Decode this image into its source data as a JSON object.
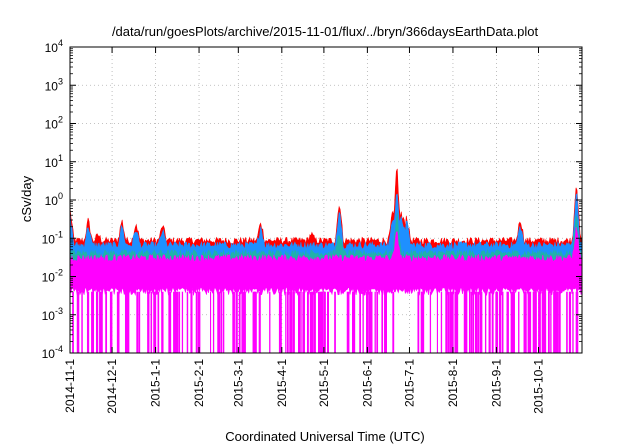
{
  "chart_data": {
    "type": "area",
    "title": "/data/run/goesPlots/archive/2015-11-01/flux/../bryn/366daysEarthData.plot",
    "xlabel": "Coordinated Universal Time (UTC)",
    "ylabel": "cSv/day",
    "y_scale": "log",
    "ylim": [
      0.0001,
      10000
    ],
    "xlim": [
      "2014-11-01",
      "2015-11-01"
    ],
    "y_ticks": [
      {
        "value": 0.0001,
        "base": "10",
        "exp": "-4"
      },
      {
        "value": 0.001,
        "base": "10",
        "exp": "-3"
      },
      {
        "value": 0.01,
        "base": "10",
        "exp": "-2"
      },
      {
        "value": 0.1,
        "base": "10",
        "exp": "-1"
      },
      {
        "value": 1,
        "base": "10",
        "exp": "0"
      },
      {
        "value": 10,
        "base": "10",
        "exp": "1"
      },
      {
        "value": 100,
        "base": "10",
        "exp": "2"
      },
      {
        "value": 1000,
        "base": "10",
        "exp": "3"
      },
      {
        "value": 10000,
        "base": "10",
        "exp": "4"
      }
    ],
    "x_ticks": [
      "2014-11-1",
      "2014-12-1",
      "2015-1-1",
      "2015-2-1",
      "2015-3-1",
      "2015-4-1",
      "2015-5-1",
      "2015-6-1",
      "2015-7-1",
      "2015-8-1",
      "2015-9-1",
      "2015-10-1"
    ],
    "grid": true,
    "colors": {
      "red": "#ff0000",
      "blue": "#1e90ff",
      "green": "#20b2aa",
      "magenta": "#ff00ff",
      "grid": "#b0b0b0"
    },
    "series": [
      {
        "color_key": "red",
        "baseline": 0.085,
        "peaks": [
          {
            "date": "2014-11-01",
            "value": 0.6
          },
          {
            "date": "2014-11-14",
            "value": 0.3
          },
          {
            "date": "2014-11-21",
            "value": 0.12
          },
          {
            "date": "2014-12-08",
            "value": 0.3
          },
          {
            "date": "2014-12-18",
            "value": 0.25
          },
          {
            "date": "2015-01-06",
            "value": 0.22
          },
          {
            "date": "2015-03-17",
            "value": 0.27
          },
          {
            "date": "2015-04-22",
            "value": 0.13
          },
          {
            "date": "2015-05-12",
            "value": 0.95
          },
          {
            "date": "2015-06-19",
            "value": 0.5
          },
          {
            "date": "2015-06-22",
            "value": 10
          },
          {
            "date": "2015-06-25",
            "value": 0.5
          },
          {
            "date": "2015-06-27",
            "value": 0.35
          },
          {
            "date": "2015-06-29",
            "value": 0.4
          },
          {
            "date": "2015-09-18",
            "value": 0.34
          },
          {
            "date": "2015-10-28",
            "value": 3.7
          }
        ]
      },
      {
        "color_key": "blue",
        "baseline": 0.065,
        "peaks": [
          {
            "date": "2014-11-01",
            "value": 0.42
          },
          {
            "date": "2014-11-14",
            "value": 0.22
          },
          {
            "date": "2014-12-08",
            "value": 0.22
          },
          {
            "date": "2014-12-18",
            "value": 0.18
          },
          {
            "date": "2015-01-06",
            "value": 0.16
          },
          {
            "date": "2015-03-17",
            "value": 0.2
          },
          {
            "date": "2015-05-12",
            "value": 0.65
          },
          {
            "date": "2015-06-19",
            "value": 0.35
          },
          {
            "date": "2015-06-22",
            "value": 2.6
          },
          {
            "date": "2015-06-25",
            "value": 0.35
          },
          {
            "date": "2015-06-27",
            "value": 0.25
          },
          {
            "date": "2015-06-29",
            "value": 0.28
          },
          {
            "date": "2015-09-18",
            "value": 0.22
          },
          {
            "date": "2015-10-28",
            "value": 2.0
          }
        ]
      },
      {
        "color_key": "green",
        "baseline": 0.04,
        "peaks": [
          {
            "date": "2015-05-12",
            "value": 0.15
          },
          {
            "date": "2015-06-22",
            "value": 0.5
          },
          {
            "date": "2015-10-28",
            "value": 0.4
          }
        ]
      },
      {
        "color_key": "magenta",
        "baseline": 0.03,
        "lower": 0.004,
        "dips_to": 0.0001,
        "peaks": [
          {
            "date": "2015-06-22",
            "value": 0.15
          },
          {
            "date": "2015-10-28",
            "value": 0.2
          }
        ]
      }
    ]
  }
}
